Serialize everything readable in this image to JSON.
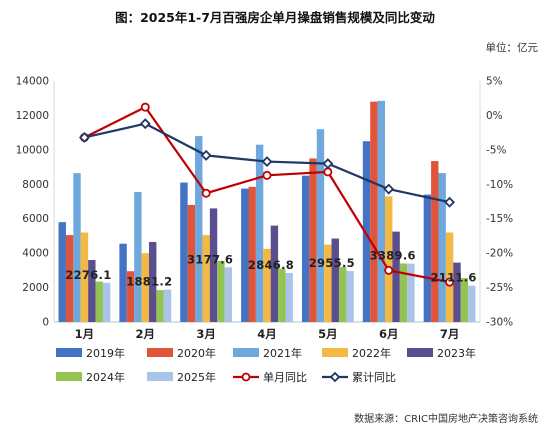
{
  "chart_data": {
    "type": "bar",
    "title": "图：2025年1-7月百强房企单月操盘销售规模及同比变动",
    "unit_label": "单位：亿元",
    "source": "数据来源：CRIC中国房地产决策咨询系统",
    "categories": [
      "1月",
      "2月",
      "3月",
      "4月",
      "5月",
      "6月",
      "7月"
    ],
    "y_left": {
      "min": 0,
      "max": 14000,
      "step": 2000
    },
    "y_right": {
      "min": -30,
      "max": 5,
      "step": 5,
      "suffix": "%"
    },
    "series": [
      {
        "name": "2019年",
        "color": "#4472C4",
        "values": [
          5800,
          4550,
          8100,
          7750,
          8500,
          10500,
          7400
        ]
      },
      {
        "name": "2020年",
        "color": "#E0543A",
        "values": [
          5050,
          2950,
          6800,
          7850,
          9500,
          12800,
          9350
        ]
      },
      {
        "name": "2021年",
        "color": "#6FA8DC",
        "values": [
          8650,
          7550,
          10800,
          10300,
          11200,
          12850,
          8650
        ]
      },
      {
        "name": "2022年",
        "color": "#F4B942",
        "values": [
          5200,
          4000,
          5050,
          4250,
          4500,
          7300,
          5200
        ]
      },
      {
        "name": "2023年",
        "color": "#5B4E8E",
        "values": [
          3600,
          4650,
          6600,
          5600,
          4850,
          5250,
          3450
        ]
      },
      {
        "name": "2024年",
        "color": "#93C353",
        "values": [
          2350,
          1850,
          3550,
          3100,
          3200,
          3400,
          2550
        ]
      },
      {
        "name": "2025年",
        "color": "#A9C4E8",
        "values": [
          2276.1,
          1881.2,
          3177.6,
          2846.8,
          2955.5,
          3389.6,
          2111.6
        ],
        "labels": [
          "2276.1",
          "1881.2",
          "3177.6",
          "2846.8",
          "2955.5",
          "3389.6",
          "2111.6"
        ]
      }
    ],
    "lines": [
      {
        "name": "单月同比",
        "color": "#C00000",
        "axis": "right",
        "marker": "circle",
        "values": [
          -3.2,
          1.2,
          -11.3,
          -8.7,
          -8.2,
          -22.5,
          -24.2
        ]
      },
      {
        "name": "累计同比",
        "color": "#1F3864",
        "axis": "right",
        "marker": "diamond",
        "values": [
          -3.2,
          -1.2,
          -5.8,
          -6.7,
          -7.0,
          -10.7,
          -12.6
        ]
      }
    ]
  }
}
